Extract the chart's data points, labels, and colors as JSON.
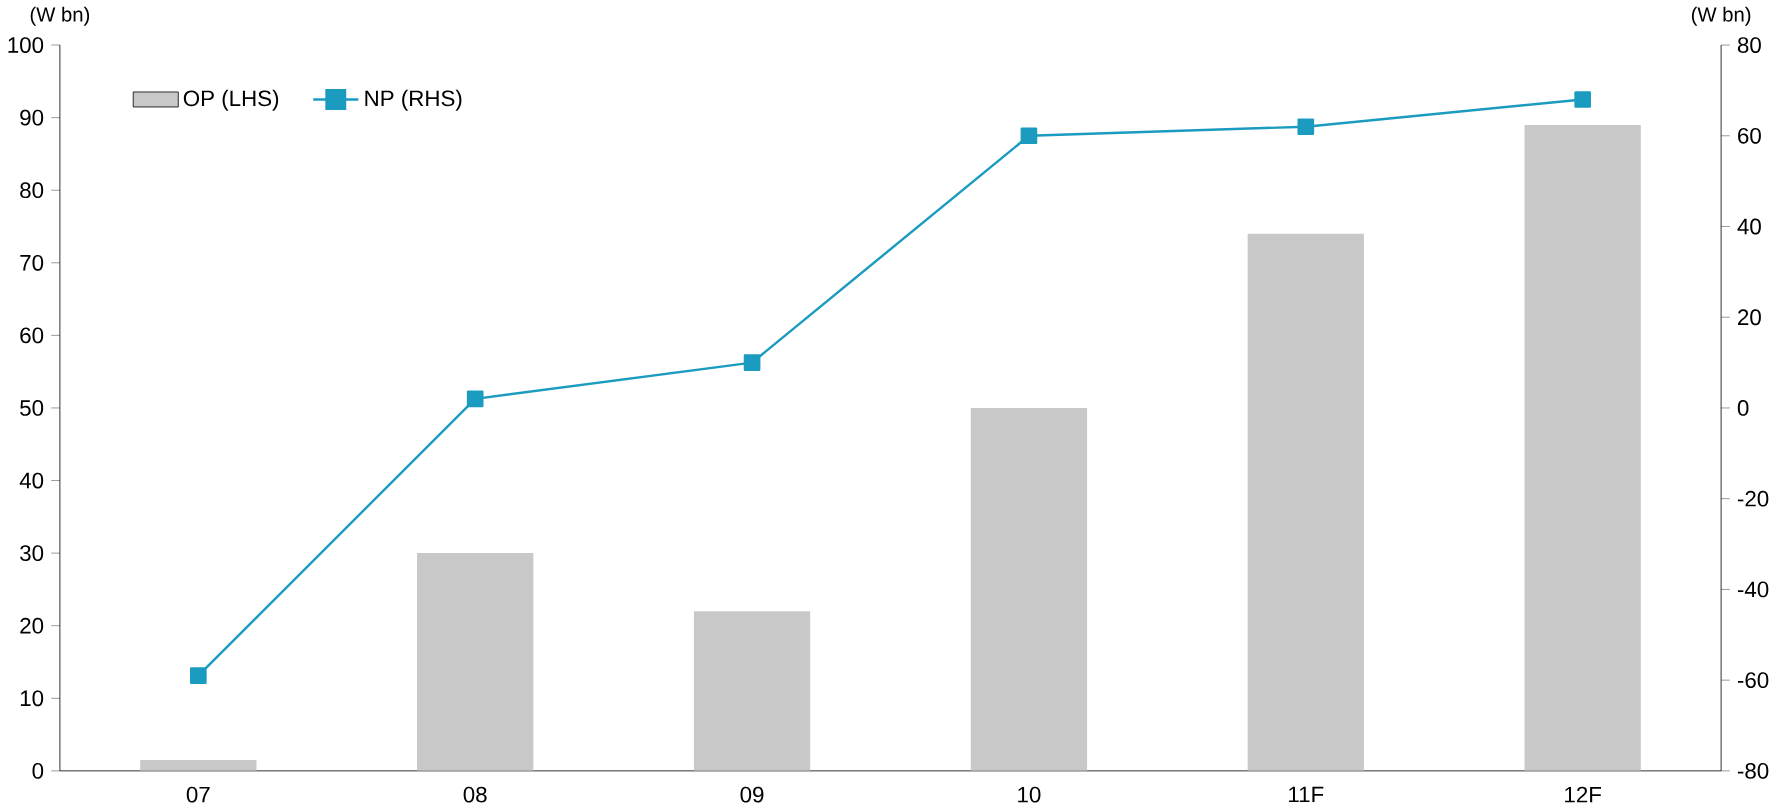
{
  "chart_data": {
    "type": "bar",
    "ylabel": "(W bn)",
    "y2label": "(W bn)",
    "categories": [
      "07",
      "08",
      "09",
      "10",
      "11F",
      "12F"
    ],
    "series": [
      {
        "name": "OP (LHS)",
        "color": "#c8c8c8",
        "values": [
          1.5,
          30,
          22,
          50,
          74,
          89
        ]
      },
      {
        "name": "NP (RHS)",
        "type": "line",
        "color": "#1a9bbf",
        "axis": "y2",
        "marker": "square",
        "values": [
          -59,
          2,
          10,
          60,
          62,
          68
        ]
      }
    ],
    "ylim": [
      0,
      100
    ],
    "yticks": [
      0,
      10,
      20,
      30,
      40,
      50,
      60,
      70,
      80,
      90,
      100
    ],
    "y2lim": [
      -80,
      80
    ],
    "y2ticks": [
      -80,
      -60,
      -40,
      -20,
      0,
      20,
      40,
      60,
      80
    ],
    "legend": "top left",
    "grid": false
  }
}
